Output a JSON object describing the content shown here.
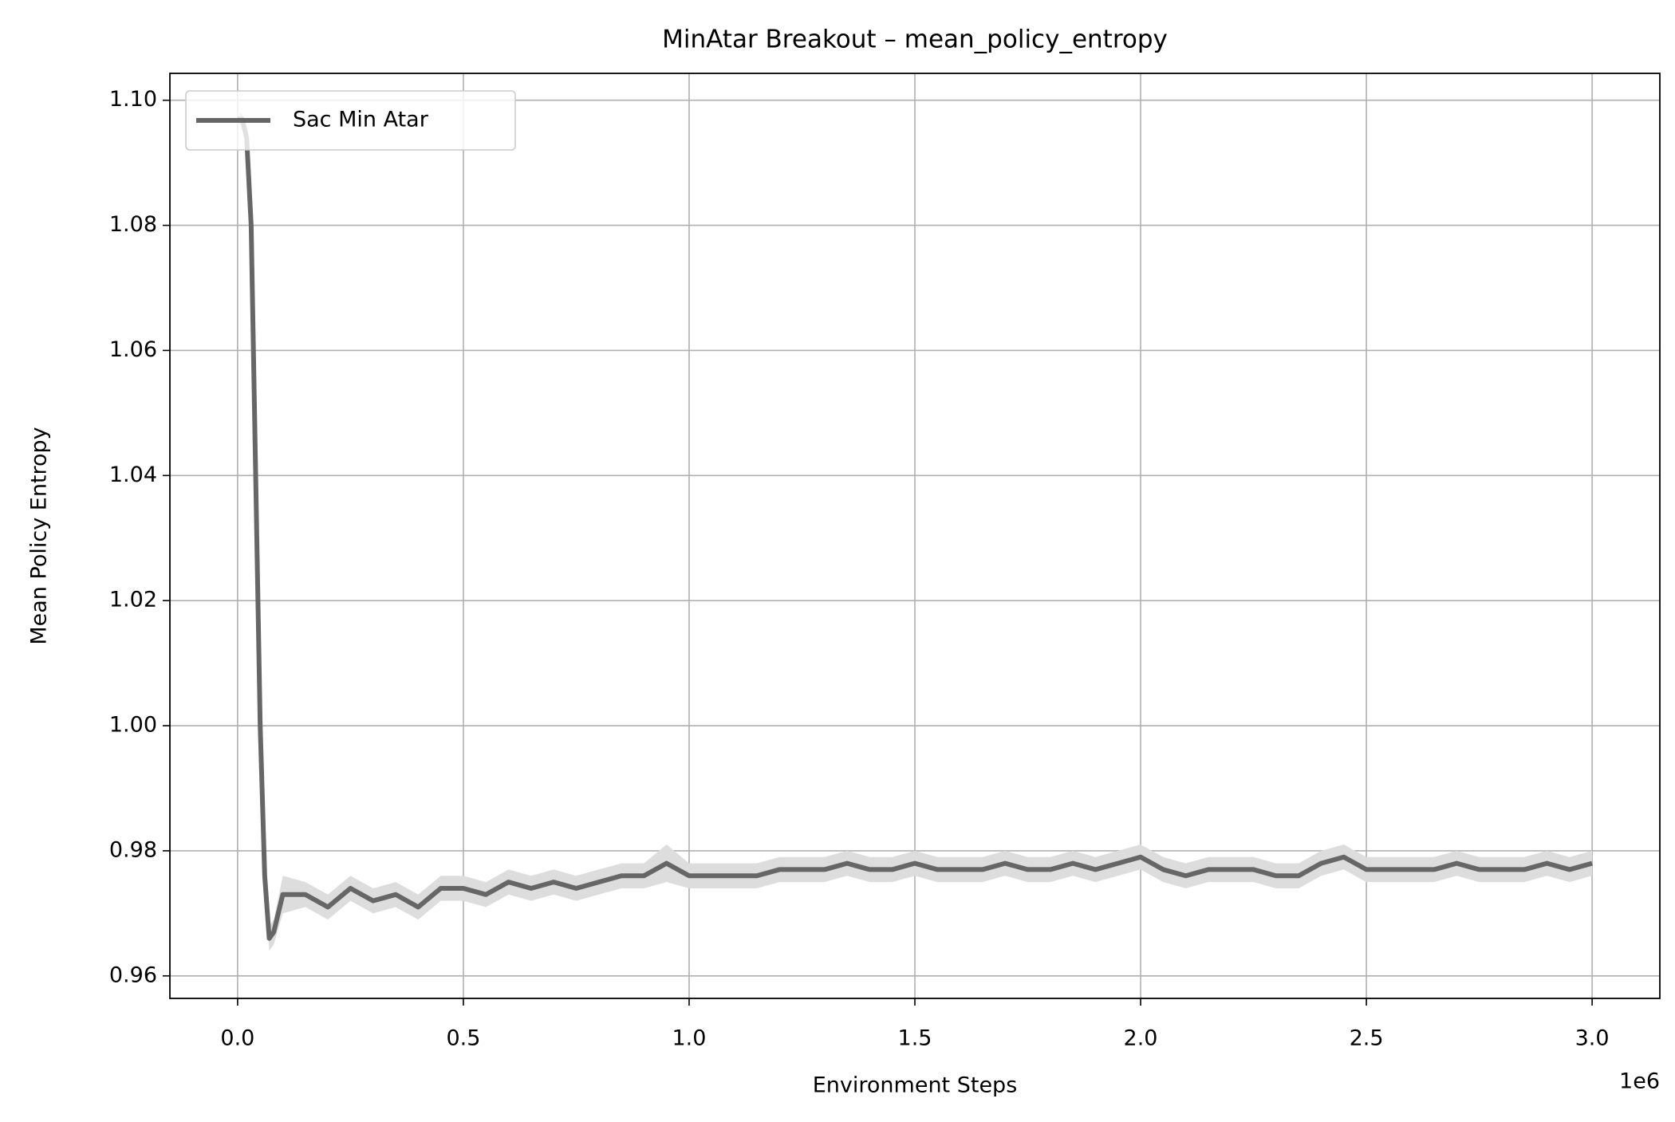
{
  "chart_data": {
    "type": "line",
    "title": "MinAtar Breakout – mean_policy_entropy",
    "x_label": "Environment Steps",
    "y_label": "Mean Policy Entropy",
    "x_offset_label": "1e6",
    "x": [
      0,
      0.01,
      0.02,
      0.03,
      0.04,
      0.05,
      0.06,
      0.07,
      0.08,
      0.1,
      0.15,
      0.2,
      0.25,
      0.3,
      0.35,
      0.4,
      0.45,
      0.5,
      0.55,
      0.6,
      0.65,
      0.7,
      0.75,
      0.8,
      0.85,
      0.9,
      0.95,
      1.0,
      1.05,
      1.1,
      1.15,
      1.2,
      1.25,
      1.3,
      1.35,
      1.4,
      1.45,
      1.5,
      1.55,
      1.6,
      1.65,
      1.7,
      1.75,
      1.8,
      1.85,
      1.9,
      1.95,
      2.0,
      2.05,
      2.1,
      2.15,
      2.2,
      2.25,
      2.3,
      2.35,
      2.4,
      2.45,
      2.5,
      2.55,
      2.6,
      2.65,
      2.7,
      2.75,
      2.8,
      2.85,
      2.9,
      2.95,
      3.0
    ],
    "series": [
      {
        "name": "Sac Min Atar",
        "color": "#666666",
        "band_color": "#dddddd",
        "values": [
          1.097,
          1.097,
          1.094,
          1.08,
          1.04,
          1.0,
          0.976,
          0.966,
          0.967,
          0.973,
          0.973,
          0.971,
          0.974,
          0.972,
          0.973,
          0.971,
          0.974,
          0.974,
          0.973,
          0.975,
          0.974,
          0.975,
          0.974,
          0.975,
          0.976,
          0.976,
          0.978,
          0.976,
          0.976,
          0.976,
          0.976,
          0.977,
          0.977,
          0.977,
          0.978,
          0.977,
          0.977,
          0.978,
          0.977,
          0.977,
          0.977,
          0.978,
          0.977,
          0.977,
          0.978,
          0.977,
          0.978,
          0.979,
          0.977,
          0.976,
          0.977,
          0.977,
          0.977,
          0.976,
          0.976,
          0.978,
          0.979,
          0.977,
          0.977,
          0.977,
          0.977,
          0.978,
          0.977,
          0.977,
          0.977,
          0.978,
          0.977,
          0.978
        ],
        "error": [
          0.001,
          0.001,
          0.001,
          0.001,
          0.001,
          0.001,
          0.001,
          0.002,
          0.002,
          0.003,
          0.002,
          0.002,
          0.002,
          0.002,
          0.002,
          0.002,
          0.002,
          0.002,
          0.002,
          0.002,
          0.002,
          0.002,
          0.002,
          0.002,
          0.002,
          0.002,
          0.003,
          0.002,
          0.002,
          0.002,
          0.002,
          0.002,
          0.002,
          0.002,
          0.002,
          0.002,
          0.002,
          0.002,
          0.002,
          0.002,
          0.002,
          0.002,
          0.002,
          0.002,
          0.002,
          0.002,
          0.002,
          0.002,
          0.002,
          0.002,
          0.002,
          0.002,
          0.002,
          0.002,
          0.002,
          0.002,
          0.002,
          0.002,
          0.002,
          0.002,
          0.002,
          0.002,
          0.002,
          0.002,
          0.002,
          0.002,
          0.002,
          0.002
        ]
      }
    ],
    "xlim": [
      -0.15,
      3.15
    ],
    "xticks": [
      {
        "value": 0,
        "label": "0.0"
      },
      0.5,
      {
        "value": 1,
        "label": "1.0"
      },
      1.5,
      {
        "value": 2,
        "label": "2.0"
      },
      2.5,
      {
        "value": 3,
        "label": "3.0"
      }
    ],
    "ylim": [
      0.9564,
      1.1043
    ],
    "yticks": [
      0.96,
      0.98,
      {
        "value": 1,
        "label": "1.00"
      },
      1.02,
      1.04,
      1.06,
      1.08,
      {
        "value": 1.1,
        "label": "1.10"
      }
    ],
    "grid": true,
    "legend": "upper left"
  }
}
